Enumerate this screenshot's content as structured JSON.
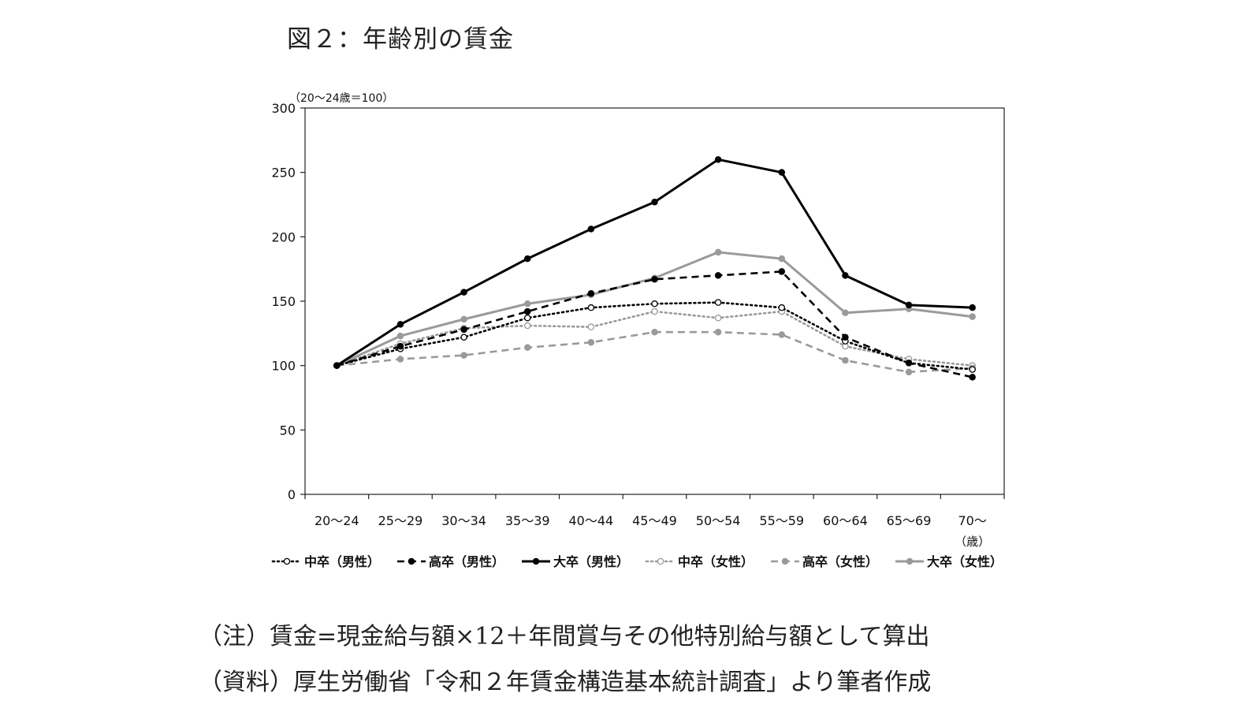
{
  "figure_title": "図２：年齢別の賃金",
  "notes": {
    "note": "（注）賃金=現金給与額×12＋年間賞与その他特別給与額として算出",
    "source": "（資料）厚生労働省「令和２年賃金構造基本統計調査」より筆者作成"
  },
  "chart_data": {
    "type": "line",
    "unit_label": "（20〜24歳＝100）",
    "x_unit": "（歳）",
    "categories": [
      "20〜24",
      "25〜29",
      "30〜34",
      "35〜39",
      "40〜44",
      "45〜49",
      "50〜54",
      "55〜59",
      "60〜64",
      "65〜69",
      "70〜"
    ],
    "ylim": [
      0,
      300
    ],
    "yticks": [
      0,
      50,
      100,
      150,
      200,
      250,
      300
    ],
    "legend_position": "bottom",
    "grid": false,
    "series": [
      {
        "name": "中卒（男性）",
        "color": "#000000",
        "style": "dotted",
        "marker": "open",
        "values": [
          100,
          113,
          122,
          137,
          145,
          148,
          149,
          145,
          119,
          102,
          97
        ]
      },
      {
        "name": "高卒（男性）",
        "color": "#000000",
        "style": "dashed",
        "marker": "filled",
        "values": [
          100,
          115,
          128,
          142,
          156,
          167,
          170,
          173,
          122,
          102,
          91
        ]
      },
      {
        "name": "大卒（男性）",
        "color": "#000000",
        "style": "solid",
        "marker": "filled",
        "values": [
          100,
          132,
          157,
          183,
          206,
          227,
          260,
          250,
          170,
          147,
          145
        ]
      },
      {
        "name": "中卒（女性）",
        "color": "#9a9a9a",
        "style": "dotted",
        "marker": "open",
        "values": [
          100,
          117,
          129,
          131,
          130,
          142,
          137,
          142,
          115,
          105,
          100
        ]
      },
      {
        "name": "高卒（女性）",
        "color": "#9a9a9a",
        "style": "dashed",
        "marker": "filled",
        "values": [
          100,
          105,
          108,
          114,
          118,
          126,
          126,
          124,
          104,
          95,
          98
        ]
      },
      {
        "name": "大卒（女性）",
        "color": "#9a9a9a",
        "style": "solid",
        "marker": "filled",
        "values": [
          100,
          123,
          136,
          148,
          155,
          168,
          188,
          183,
          141,
          144,
          138
        ]
      }
    ]
  }
}
